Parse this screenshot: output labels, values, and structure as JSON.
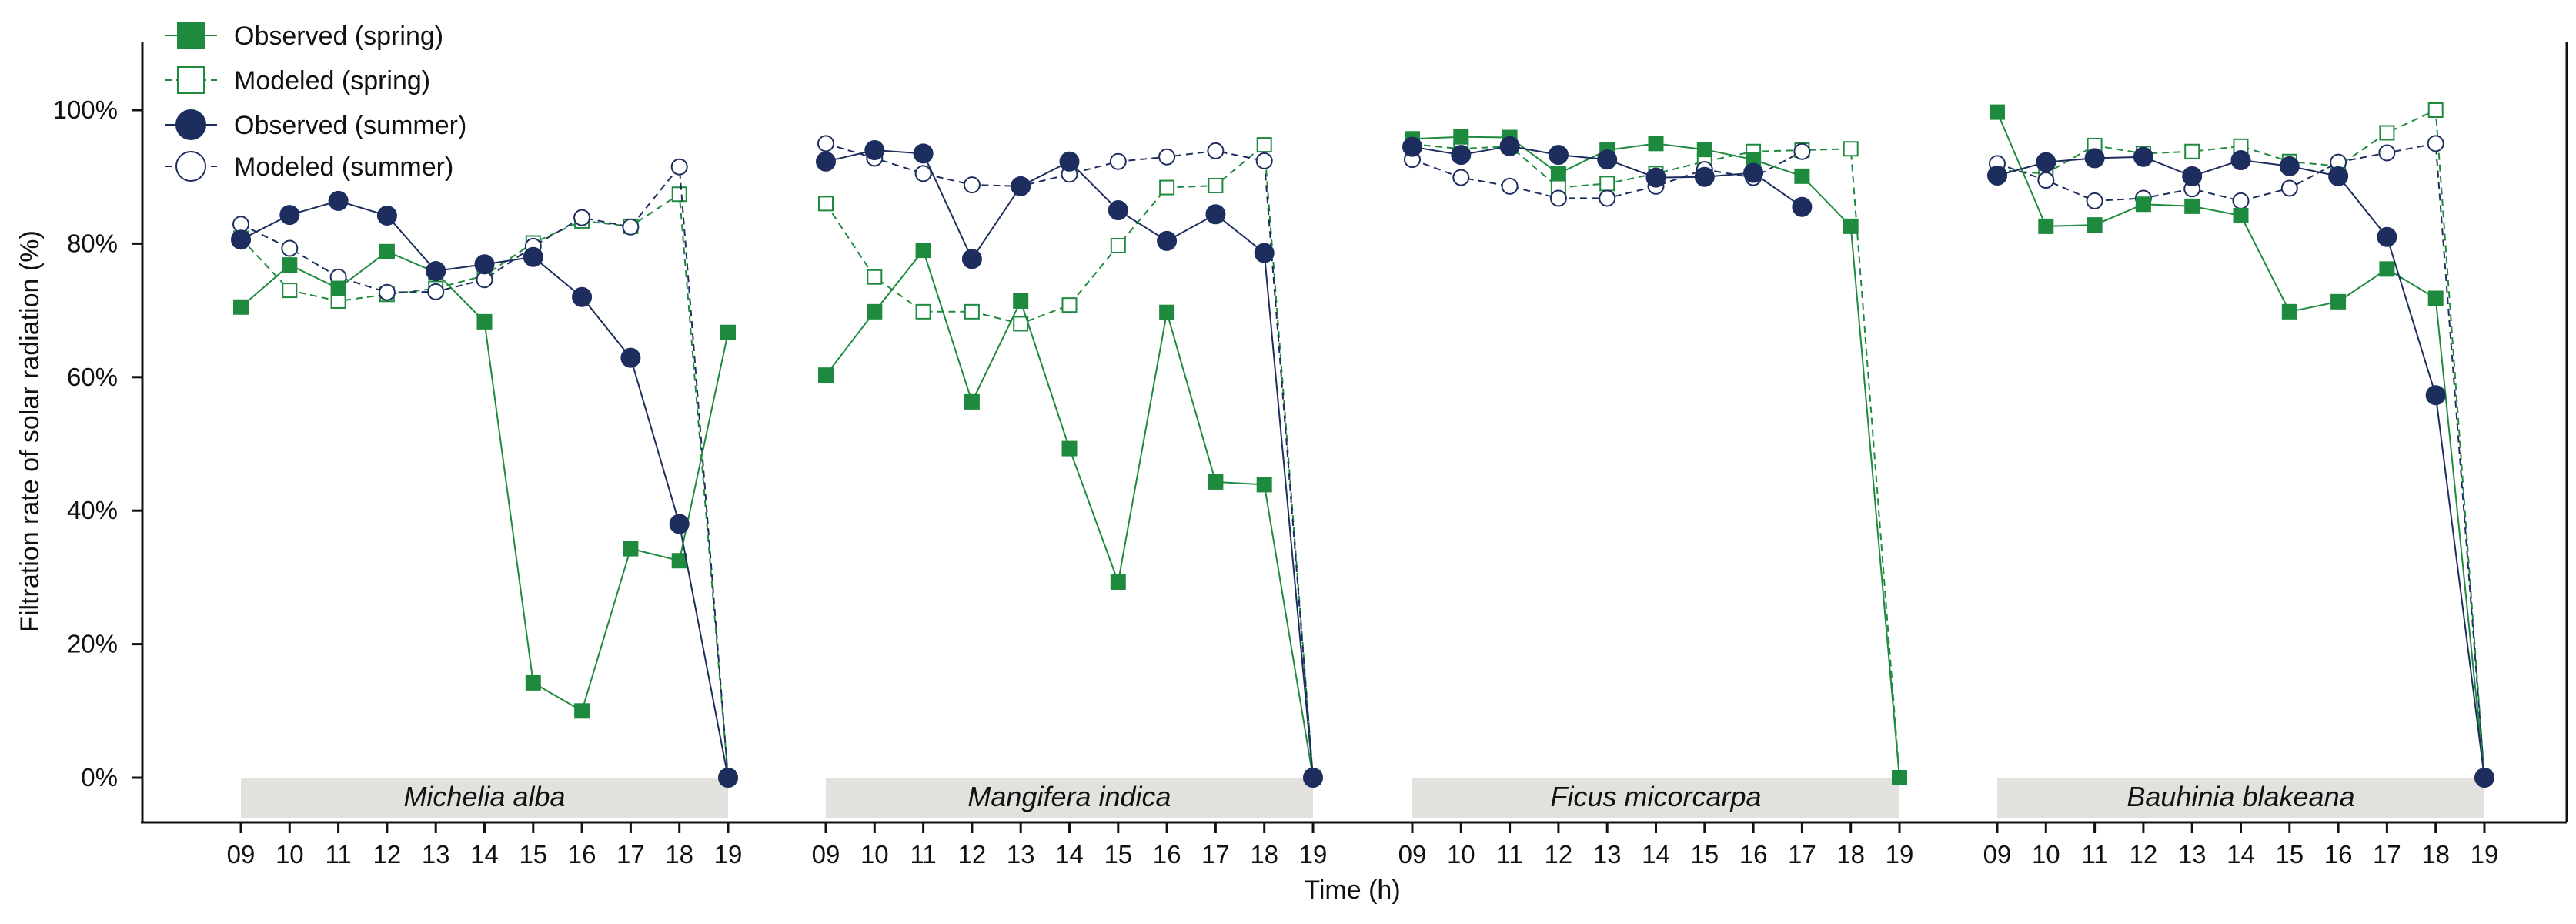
{
  "colors": {
    "spring": "#1e8a3e",
    "summer": "#1c2d5e",
    "band": "#e3e1de",
    "axis": "#111111"
  },
  "chart_data": {
    "type": "line",
    "ylabel": "Filtration rate of solar radiation (%)",
    "xlabel": "Time (h)",
    "ylim": [
      0,
      100
    ],
    "y_ticks": [
      "0%",
      "20%",
      "40%",
      "60%",
      "80%",
      "100%"
    ],
    "x_ticks": [
      "09",
      "10",
      "11",
      "12",
      "13",
      "14",
      "15",
      "16",
      "17",
      "18",
      "19"
    ],
    "legend": [
      {
        "label": "Observed (spring)",
        "series": "obs_spring"
      },
      {
        "label": "Modeled (spring)",
        "series": "mod_spring"
      },
      {
        "label": "Observed (summer)",
        "series": "obs_summer"
      },
      {
        "label": "Modeled (summer)",
        "series": "mod_summer"
      }
    ],
    "panels": [
      {
        "label": "Michelia alba",
        "obs_spring": [
          70.5,
          76.8,
          73.3,
          78.8,
          75.7,
          68.3,
          14.2,
          10.0,
          34.3,
          32.5,
          66.7
        ],
        "mod_spring": [
          80.8,
          73.0,
          71.4,
          72.4,
          73.3,
          75.2,
          80.1,
          83.4,
          82.6,
          87.4,
          0
        ],
        "obs_summer": [
          80.6,
          84.3,
          86.4,
          84.2,
          75.9,
          76.9,
          78.0,
          72.0,
          62.9,
          38.0,
          0
        ],
        "mod_summer": [
          82.9,
          79.3,
          75.0,
          72.7,
          72.8,
          74.6,
          79.6,
          83.9,
          82.5,
          91.5,
          0
        ]
      },
      {
        "label": "Mangifera indica",
        "obs_spring": [
          60.3,
          69.8,
          79.0,
          56.3,
          71.4,
          49.3,
          29.3,
          69.7,
          44.3,
          43.9,
          0
        ],
        "mod_spring": [
          86.0,
          75.0,
          69.8,
          69.8,
          68.0,
          70.8,
          79.7,
          88.4,
          88.7,
          94.8,
          0
        ],
        "obs_summer": [
          92.3,
          94.0,
          93.5,
          77.7,
          88.6,
          92.3,
          85.0,
          80.4,
          84.4,
          78.6,
          0
        ],
        "mod_summer": [
          95.0,
          92.8,
          90.5,
          88.8,
          88.6,
          90.4,
          92.3,
          93.0,
          93.9,
          92.4,
          0
        ]
      },
      {
        "label": "Ficus micorcarpa",
        "obs_spring": [
          95.7,
          96.0,
          95.9,
          90.5,
          94.0,
          95.0,
          94.1,
          92.6,
          90.1,
          82.6,
          0
        ],
        "mod_spring": [
          94.9,
          94.2,
          94.6,
          88.4,
          89.0,
          90.5,
          92.3,
          93.8,
          94.0,
          94.2,
          0
        ],
        "obs_summer": [
          94.5,
          93.3,
          94.6,
          93.3,
          92.6,
          89.9,
          90.0,
          90.6,
          85.5,
          null,
          null
        ],
        "mod_summer": [
          92.6,
          89.9,
          88.6,
          86.8,
          86.8,
          88.6,
          91.1,
          89.9,
          93.8,
          null,
          null
        ]
      },
      {
        "label": "Bauhinia blakeana",
        "obs_spring": [
          99.7,
          82.6,
          82.8,
          85.9,
          85.6,
          84.2,
          69.8,
          71.3,
          76.2,
          71.8,
          0
        ],
        "mod_spring": [
          91.0,
          90.5,
          94.7,
          93.5,
          93.8,
          94.6,
          92.3,
          91.6,
          96.6,
          100.0,
          0
        ],
        "obs_summer": [
          90.2,
          92.2,
          92.8,
          93.0,
          90.1,
          92.5,
          91.6,
          90.1,
          81.0,
          57.3,
          0
        ],
        "mod_summer": [
          92.0,
          89.5,
          86.4,
          86.8,
          88.2,
          86.4,
          88.3,
          92.2,
          93.6,
          95.0,
          0
        ]
      }
    ]
  }
}
